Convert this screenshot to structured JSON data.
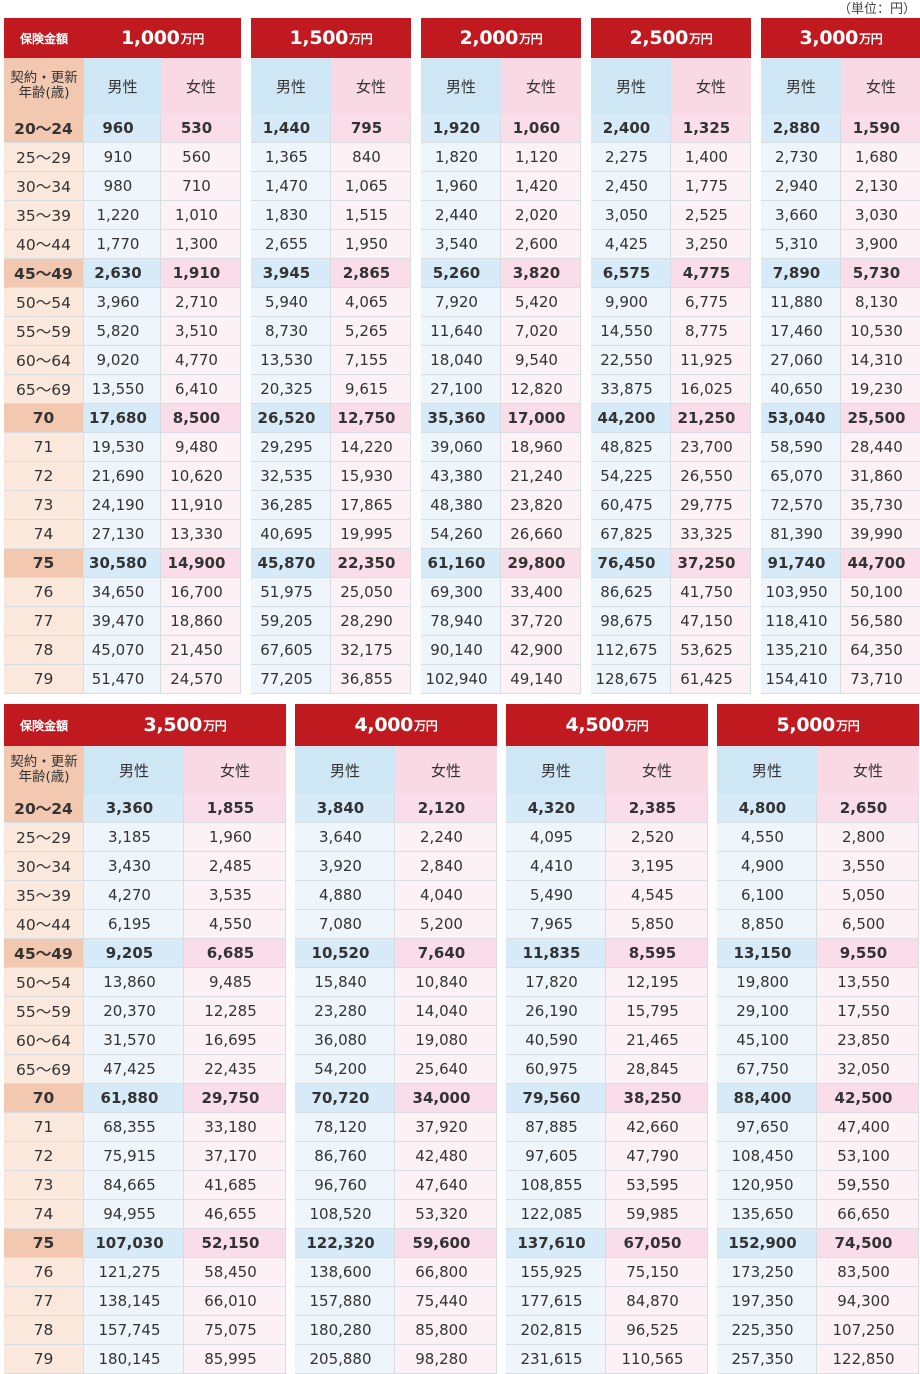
{
  "unit_note": "（単位：円）",
  "insured_label": "保険金額",
  "age_header": "契約・更新年齢(歳)",
  "male_label": "男性",
  "female_label": "女性",
  "highlight_ages": [
    "20～24",
    "45～49",
    "70",
    "75"
  ],
  "ages": [
    "20～24",
    "25～29",
    "30～34",
    "35～39",
    "40～44",
    "45～49",
    "50～54",
    "55～59",
    "60～64",
    "65～69",
    "70",
    "71",
    "72",
    "73",
    "74",
    "75",
    "76",
    "77",
    "78",
    "79"
  ],
  "sections": [
    {
      "columns": [
        {
          "amount": "1,000",
          "unit": "万円",
          "male": [
            "960",
            "910",
            "980",
            "1,220",
            "1,770",
            "2,630",
            "3,960",
            "5,820",
            "9,020",
            "13,550",
            "17,680",
            "19,530",
            "21,690",
            "24,190",
            "27,130",
            "30,580",
            "34,650",
            "39,470",
            "45,070",
            "51,470"
          ],
          "female": [
            "530",
            "560",
            "710",
            "1,010",
            "1,300",
            "1,910",
            "2,710",
            "3,510",
            "4,770",
            "6,410",
            "8,500",
            "9,480",
            "10,620",
            "11,910",
            "13,330",
            "14,900",
            "16,700",
            "18,860",
            "21,450",
            "24,570"
          ]
        },
        {
          "amount": "1,500",
          "unit": "万円",
          "male": [
            "1,440",
            "1,365",
            "1,470",
            "1,830",
            "2,655",
            "3,945",
            "5,940",
            "8,730",
            "13,530",
            "20,325",
            "26,520",
            "29,295",
            "32,535",
            "36,285",
            "40,695",
            "45,870",
            "51,975",
            "59,205",
            "67,605",
            "77,205"
          ],
          "female": [
            "795",
            "840",
            "1,065",
            "1,515",
            "1,950",
            "2,865",
            "4,065",
            "5,265",
            "7,155",
            "9,615",
            "12,750",
            "14,220",
            "15,930",
            "17,865",
            "19,995",
            "22,350",
            "25,050",
            "28,290",
            "32,175",
            "36,855"
          ]
        },
        {
          "amount": "2,000",
          "unit": "万円",
          "male": [
            "1,920",
            "1,820",
            "1,960",
            "2,440",
            "3,540",
            "5,260",
            "7,920",
            "11,640",
            "18,040",
            "27,100",
            "35,360",
            "39,060",
            "43,380",
            "48,380",
            "54,260",
            "61,160",
            "69,300",
            "78,940",
            "90,140",
            "102,940"
          ],
          "female": [
            "1,060",
            "1,120",
            "1,420",
            "2,020",
            "2,600",
            "3,820",
            "5,420",
            "7,020",
            "9,540",
            "12,820",
            "17,000",
            "18,960",
            "21,240",
            "23,820",
            "26,660",
            "29,800",
            "33,400",
            "37,720",
            "42,900",
            "49,140"
          ]
        },
        {
          "amount": "2,500",
          "unit": "万円",
          "male": [
            "2,400",
            "2,275",
            "2,450",
            "3,050",
            "4,425",
            "6,575",
            "9,900",
            "14,550",
            "22,550",
            "33,875",
            "44,200",
            "48,825",
            "54,225",
            "60,475",
            "67,825",
            "76,450",
            "86,625",
            "98,675",
            "112,675",
            "128,675"
          ],
          "female": [
            "1,325",
            "1,400",
            "1,775",
            "2,525",
            "3,250",
            "4,775",
            "6,775",
            "8,775",
            "11,925",
            "16,025",
            "21,250",
            "23,700",
            "26,550",
            "29,775",
            "33,325",
            "37,250",
            "41,750",
            "47,150",
            "53,625",
            "61,425"
          ]
        },
        {
          "amount": "3,000",
          "unit": "万円",
          "male": [
            "2,880",
            "2,730",
            "2,940",
            "3,660",
            "5,310",
            "7,890",
            "11,880",
            "17,460",
            "27,060",
            "40,650",
            "53,040",
            "58,590",
            "65,070",
            "72,570",
            "81,390",
            "91,740",
            "103,950",
            "118,410",
            "135,210",
            "154,410"
          ],
          "female": [
            "1,590",
            "1,680",
            "2,130",
            "3,030",
            "3,900",
            "5,730",
            "8,130",
            "10,530",
            "14,310",
            "19,230",
            "25,500",
            "28,440",
            "31,860",
            "35,730",
            "39,990",
            "44,700",
            "50,100",
            "56,580",
            "64,350",
            "73,710"
          ]
        }
      ]
    },
    {
      "columns": [
        {
          "amount": "3,500",
          "unit": "万円",
          "male": [
            "3,360",
            "3,185",
            "3,430",
            "4,270",
            "6,195",
            "9,205",
            "13,860",
            "20,370",
            "31,570",
            "47,425",
            "61,880",
            "68,355",
            "75,915",
            "84,665",
            "94,955",
            "107,030",
            "121,275",
            "138,145",
            "157,745",
            "180,145"
          ],
          "female": [
            "1,855",
            "1,960",
            "2,485",
            "3,535",
            "4,550",
            "6,685",
            "9,485",
            "12,285",
            "16,695",
            "22,435",
            "29,750",
            "33,180",
            "37,170",
            "41,685",
            "46,655",
            "52,150",
            "58,450",
            "66,010",
            "75,075",
            "85,995"
          ]
        },
        {
          "amount": "4,000",
          "unit": "万円",
          "male": [
            "3,840",
            "3,640",
            "3,920",
            "4,880",
            "7,080",
            "10,520",
            "15,840",
            "23,280",
            "36,080",
            "54,200",
            "70,720",
            "78,120",
            "86,760",
            "96,760",
            "108,520",
            "122,320",
            "138,600",
            "157,880",
            "180,280",
            "205,880"
          ],
          "female": [
            "2,120",
            "2,240",
            "2,840",
            "4,040",
            "5,200",
            "7,640",
            "10,840",
            "14,040",
            "19,080",
            "25,640",
            "34,000",
            "37,920",
            "42,480",
            "47,640",
            "53,320",
            "59,600",
            "66,800",
            "75,440",
            "85,800",
            "98,280"
          ]
        },
        {
          "amount": "4,500",
          "unit": "万円",
          "male": [
            "4,320",
            "4,095",
            "4,410",
            "5,490",
            "7,965",
            "11,835",
            "17,820",
            "26,190",
            "40,590",
            "60,975",
            "79,560",
            "87,885",
            "97,605",
            "108,855",
            "122,085",
            "137,610",
            "155,925",
            "177,615",
            "202,815",
            "231,615"
          ],
          "female": [
            "2,385",
            "2,520",
            "3,195",
            "4,545",
            "5,850",
            "8,595",
            "12,195",
            "15,795",
            "21,465",
            "28,845",
            "38,250",
            "42,660",
            "47,790",
            "53,595",
            "59,985",
            "67,050",
            "75,150",
            "84,870",
            "96,525",
            "110,565"
          ]
        },
        {
          "amount": "5,000",
          "unit": "万円",
          "male": [
            "4,800",
            "4,550",
            "4,900",
            "6,100",
            "8,850",
            "13,150",
            "19,800",
            "29,100",
            "45,100",
            "67,750",
            "88,400",
            "97,650",
            "108,450",
            "120,950",
            "135,650",
            "152,900",
            "173,250",
            "197,350",
            "225,350",
            "257,350"
          ],
          "female": [
            "2,650",
            "2,800",
            "3,550",
            "5,050",
            "6,500",
            "9,550",
            "13,550",
            "17,550",
            "23,850",
            "32,050",
            "42,500",
            "47,400",
            "53,100",
            "59,550",
            "66,650",
            "74,500",
            "83,500",
            "94,300",
            "107,250",
            "122,850"
          ]
        }
      ]
    }
  ]
}
